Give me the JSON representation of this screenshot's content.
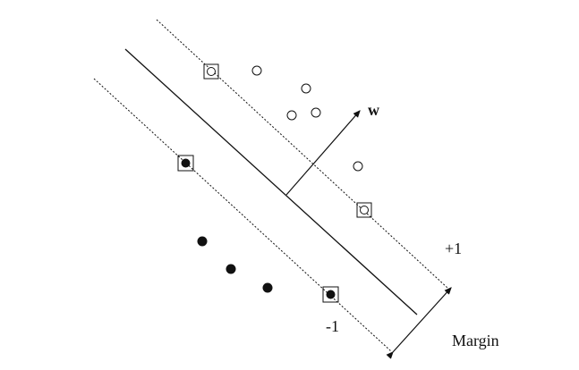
{
  "labels": {
    "weight_vector": "w",
    "positive_margin": "+1",
    "negative_margin": "-1",
    "margin": "Margin"
  },
  "points": {
    "positive_class": "open-circle",
    "negative_class": "filled-circle",
    "support_vectors": "boxed-points"
  },
  "colors": {
    "ink": "#111111",
    "background": "#ffffff"
  }
}
